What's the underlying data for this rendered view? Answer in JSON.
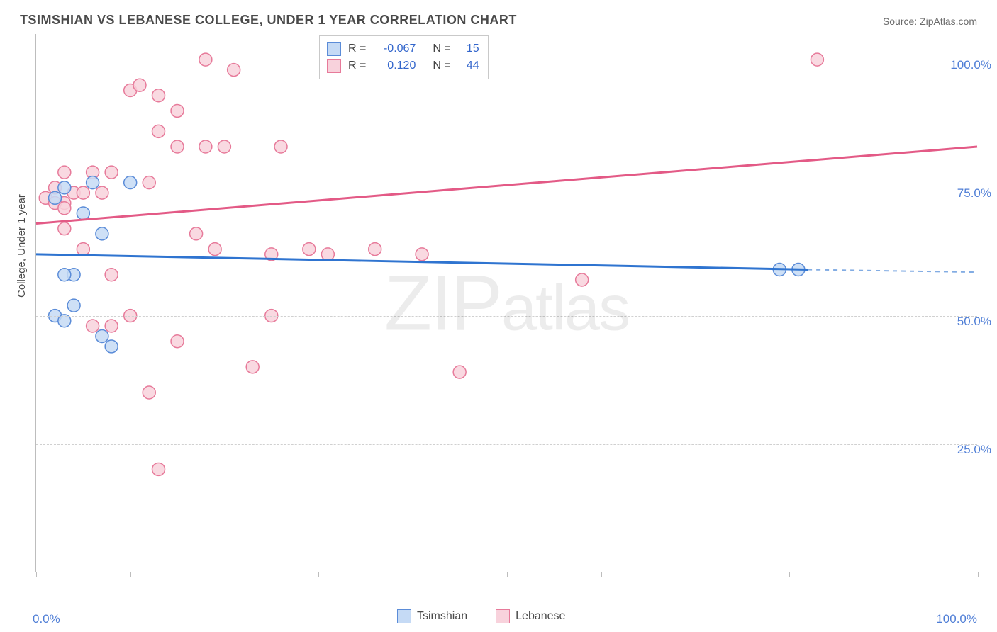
{
  "title": "TSIMSHIAN VS LEBANESE COLLEGE, UNDER 1 YEAR CORRELATION CHART",
  "source": "Source: ZipAtlas.com",
  "ylabel": "College, Under 1 year",
  "watermark_a": "ZIP",
  "watermark_b": "atlas",
  "chart": {
    "type": "scatter",
    "xlim": [
      0,
      100
    ],
    "ylim": [
      0,
      105
    ],
    "ytick_values": [
      25,
      50,
      75,
      100
    ],
    "ytick_labels": [
      "25.0%",
      "50.0%",
      "75.0%",
      "100.0%"
    ],
    "xtick_values": [
      0,
      10,
      20,
      30,
      40,
      50,
      60,
      70,
      80,
      100
    ],
    "xtick_label_left": "0.0%",
    "xtick_label_right": "100.0%",
    "background_color": "#ffffff",
    "grid_color": "#d0d0d0",
    "axis_color": "#bdbdbd",
    "series": [
      {
        "name": "Tsimshian",
        "fill": "#c5daf5",
        "stroke": "#5b8cd8",
        "line_color": "#2f74d0",
        "r_label": "R =",
        "r_value": "-0.067",
        "n_label": "N =",
        "n_value": "15",
        "trend": {
          "x1": 0,
          "y1": 62,
          "x2": 82,
          "y2": 59,
          "x2_dash": 100,
          "y2_dash": 58.5
        },
        "points": [
          [
            2,
            73
          ],
          [
            3,
            75
          ],
          [
            4,
            58
          ],
          [
            3,
            58
          ],
          [
            7,
            66
          ],
          [
            2,
            50
          ],
          [
            3,
            49
          ],
          [
            4,
            52
          ],
          [
            7,
            46
          ],
          [
            8,
            44
          ],
          [
            6,
            76
          ],
          [
            10,
            76
          ],
          [
            5,
            70
          ],
          [
            79,
            59
          ],
          [
            81,
            59
          ]
        ]
      },
      {
        "name": "Lebanese",
        "fill": "#f8d2dc",
        "stroke": "#e77a9a",
        "line_color": "#e35a86",
        "r_label": "R =",
        "r_value": "0.120",
        "n_label": "N =",
        "n_value": "44",
        "trend": {
          "x1": 0,
          "y1": 68,
          "x2": 100,
          "y2": 83
        },
        "points": [
          [
            1,
            73
          ],
          [
            2,
            75
          ],
          [
            3,
            72
          ],
          [
            2,
            72
          ],
          [
            3,
            71
          ],
          [
            4,
            74
          ],
          [
            3,
            78
          ],
          [
            6,
            78
          ],
          [
            8,
            78
          ],
          [
            5,
            74
          ],
          [
            7,
            74
          ],
          [
            10,
            94
          ],
          [
            11,
            95
          ],
          [
            13,
            93
          ],
          [
            15,
            90
          ],
          [
            18,
            100
          ],
          [
            21,
            98
          ],
          [
            13,
            86
          ],
          [
            15,
            83
          ],
          [
            18,
            83
          ],
          [
            20,
            83
          ],
          [
            26,
            83
          ],
          [
            12,
            76
          ],
          [
            3,
            67
          ],
          [
            5,
            63
          ],
          [
            8,
            58
          ],
          [
            17,
            66
          ],
          [
            19,
            63
          ],
          [
            25,
            62
          ],
          [
            29,
            63
          ],
          [
            31,
            62
          ],
          [
            25,
            50
          ],
          [
            23,
            40
          ],
          [
            15,
            45
          ],
          [
            10,
            50
          ],
          [
            6,
            48
          ],
          [
            8,
            48
          ],
          [
            12,
            35
          ],
          [
            13,
            20
          ],
          [
            36,
            63
          ],
          [
            41,
            62
          ],
          [
            58,
            57
          ],
          [
            45,
            39
          ],
          [
            83,
            100
          ]
        ]
      }
    ]
  },
  "legend_bottom": [
    {
      "label": "Tsimshian",
      "fill": "#c5daf5",
      "stroke": "#5b8cd8"
    },
    {
      "label": "Lebanese",
      "fill": "#f8d2dc",
      "stroke": "#e77a9a"
    }
  ]
}
